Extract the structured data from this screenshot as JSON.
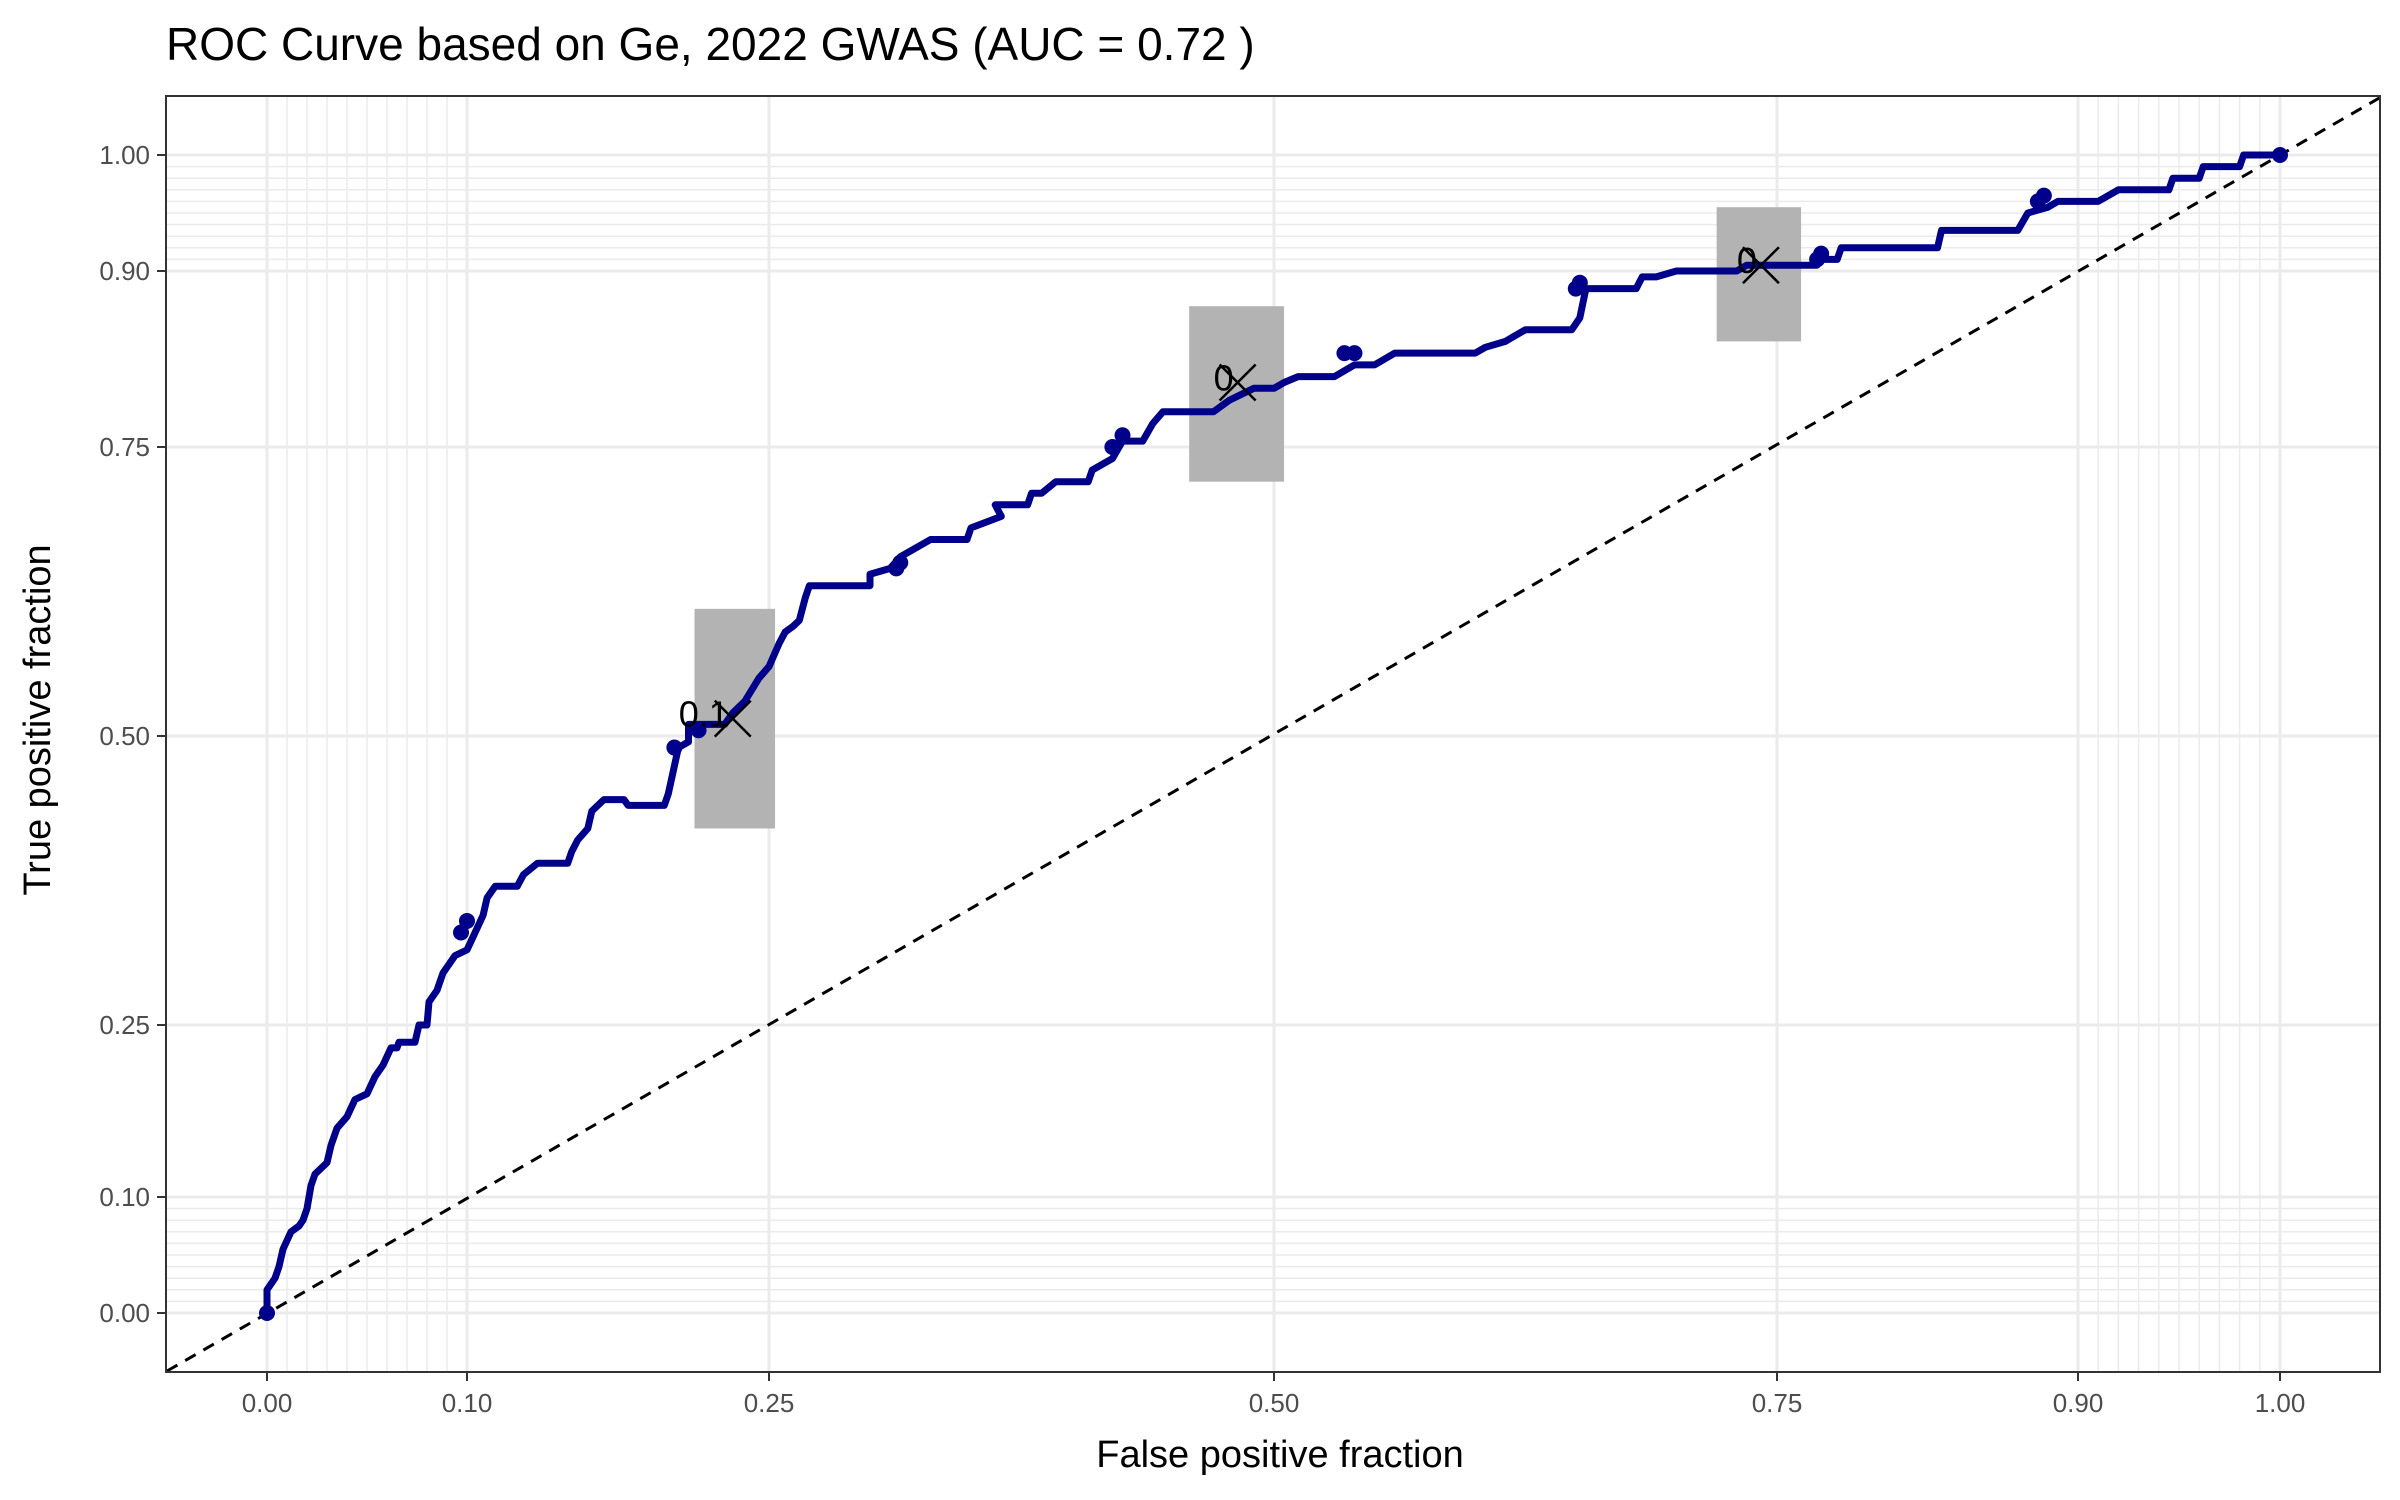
{
  "chart_data": {
    "type": "line",
    "title": "ROC Curve based on Ge, 2022 GWAS (AUC = 0.72 )",
    "xlabel": "False positive fraction",
    "ylabel": "True positive fraction",
    "xlim": [
      -0.05,
      1.05
    ],
    "ylim": [
      -0.05,
      1.05
    ],
    "x_ticks": [
      0.0,
      0.1,
      0.25,
      0.5,
      0.75,
      0.9,
      1.0
    ],
    "x_tick_labels": [
      "0.00",
      "0.10",
      "0.25",
      "0.50",
      "0.75",
      "0.90",
      "1.00"
    ],
    "y_ticks": [
      0.0,
      0.1,
      0.25,
      0.5,
      0.75,
      0.9,
      1.0
    ],
    "y_tick_labels": [
      "0.00",
      "0.10",
      "0.25",
      "0.50",
      "0.75",
      "0.90",
      "1.00"
    ],
    "minor_grid": [
      0.01,
      0.02,
      0.03,
      0.04,
      0.05,
      0.06,
      0.07,
      0.08,
      0.09,
      0.91,
      0.92,
      0.93,
      0.94,
      0.95,
      0.96,
      0.97,
      0.98,
      0.99
    ],
    "grid": true,
    "line_color": "#00008B",
    "reference_line": {
      "x": [
        0,
        1
      ],
      "y": [
        0,
        1
      ],
      "style": "dashed",
      "color": "#000000"
    },
    "series": [
      {
        "values_xy": [
          [
            0.0,
            0.0
          ],
          [
            0.0,
            0.02
          ],
          [
            0.004,
            0.03
          ],
          [
            0.006,
            0.04
          ],
          [
            0.008,
            0.055
          ],
          [
            0.012,
            0.07
          ],
          [
            0.016,
            0.075
          ],
          [
            0.018,
            0.08
          ],
          [
            0.02,
            0.09
          ],
          [
            0.022,
            0.11
          ],
          [
            0.024,
            0.12
          ],
          [
            0.03,
            0.13
          ],
          [
            0.032,
            0.145
          ],
          [
            0.035,
            0.16
          ],
          [
            0.04,
            0.17
          ],
          [
            0.044,
            0.185
          ],
          [
            0.05,
            0.19
          ],
          [
            0.054,
            0.205
          ],
          [
            0.058,
            0.215
          ],
          [
            0.062,
            0.23
          ],
          [
            0.065,
            0.23
          ],
          [
            0.066,
            0.235
          ],
          [
            0.074,
            0.235
          ],
          [
            0.076,
            0.25
          ],
          [
            0.08,
            0.25
          ],
          [
            0.081,
            0.27
          ],
          [
            0.085,
            0.28
          ],
          [
            0.088,
            0.295
          ],
          [
            0.09,
            0.3
          ],
          [
            0.094,
            0.31
          ],
          [
            0.1,
            0.315
          ],
          [
            0.104,
            0.33
          ],
          [
            0.108,
            0.345
          ],
          [
            0.11,
            0.36
          ],
          [
            0.114,
            0.37
          ],
          [
            0.125,
            0.37
          ],
          [
            0.128,
            0.38
          ],
          [
            0.135,
            0.39
          ],
          [
            0.15,
            0.39
          ],
          [
            0.152,
            0.4
          ],
          [
            0.155,
            0.41
          ],
          [
            0.16,
            0.42
          ],
          [
            0.162,
            0.435
          ],
          [
            0.168,
            0.445
          ],
          [
            0.178,
            0.445
          ],
          [
            0.18,
            0.44
          ],
          [
            0.198,
            0.44
          ],
          [
            0.2,
            0.45
          ],
          [
            0.205,
            0.49
          ],
          [
            0.21,
            0.495
          ],
          [
            0.21,
            0.51
          ],
          [
            0.228,
            0.51
          ],
          [
            0.232,
            0.52
          ],
          [
            0.238,
            0.53
          ],
          [
            0.245,
            0.55
          ],
          [
            0.25,
            0.56
          ],
          [
            0.255,
            0.58
          ],
          [
            0.258,
            0.59
          ],
          [
            0.262,
            0.595
          ],
          [
            0.265,
            0.6
          ],
          [
            0.268,
            0.62
          ],
          [
            0.27,
            0.63
          ],
          [
            0.3,
            0.63
          ],
          [
            0.3,
            0.64
          ],
          [
            0.31,
            0.645
          ],
          [
            0.315,
            0.655
          ],
          [
            0.33,
            0.67
          ],
          [
            0.348,
            0.67
          ],
          [
            0.35,
            0.68
          ],
          [
            0.365,
            0.69
          ],
          [
            0.362,
            0.7
          ],
          [
            0.378,
            0.7
          ],
          [
            0.38,
            0.71
          ],
          [
            0.385,
            0.71
          ],
          [
            0.392,
            0.72
          ],
          [
            0.408,
            0.72
          ],
          [
            0.41,
            0.73
          ],
          [
            0.42,
            0.74
          ],
          [
            0.425,
            0.755
          ],
          [
            0.435,
            0.755
          ],
          [
            0.44,
            0.77
          ],
          [
            0.445,
            0.78
          ],
          [
            0.47,
            0.78
          ],
          [
            0.478,
            0.79
          ],
          [
            0.49,
            0.8
          ],
          [
            0.5,
            0.8
          ],
          [
            0.505,
            0.805
          ],
          [
            0.512,
            0.81
          ],
          [
            0.53,
            0.81
          ],
          [
            0.54,
            0.82
          ],
          [
            0.55,
            0.82
          ],
          [
            0.56,
            0.83
          ],
          [
            0.6,
            0.83
          ],
          [
            0.605,
            0.835
          ],
          [
            0.615,
            0.84
          ],
          [
            0.62,
            0.845
          ],
          [
            0.625,
            0.85
          ],
          [
            0.648,
            0.85
          ],
          [
            0.652,
            0.86
          ],
          [
            0.655,
            0.885
          ],
          [
            0.68,
            0.885
          ],
          [
            0.683,
            0.895
          ],
          [
            0.69,
            0.895
          ],
          [
            0.7,
            0.9
          ],
          [
            0.73,
            0.9
          ],
          [
            0.735,
            0.905
          ],
          [
            0.77,
            0.905
          ],
          [
            0.772,
            0.91
          ],
          [
            0.78,
            0.91
          ],
          [
            0.782,
            0.92
          ],
          [
            0.83,
            0.92
          ],
          [
            0.832,
            0.935
          ],
          [
            0.87,
            0.935
          ],
          [
            0.875,
            0.95
          ],
          [
            0.885,
            0.955
          ],
          [
            0.89,
            0.96
          ],
          [
            0.91,
            0.96
          ],
          [
            0.92,
            0.97
          ],
          [
            0.945,
            0.97
          ],
          [
            0.947,
            0.98
          ],
          [
            0.96,
            0.98
          ],
          [
            0.962,
            0.99
          ],
          [
            0.98,
            0.99
          ],
          [
            0.982,
            1.0
          ],
          [
            1.0,
            1.0
          ]
        ]
      }
    ],
    "points": [
      [
        0.0,
        0.0
      ],
      [
        0.097,
        0.33
      ],
      [
        0.1,
        0.34
      ],
      [
        0.203,
        0.49
      ],
      [
        0.215,
        0.505
      ],
      [
        0.313,
        0.645
      ],
      [
        0.315,
        0.65
      ],
      [
        0.42,
        0.75
      ],
      [
        0.425,
        0.76
      ],
      [
        0.535,
        0.83
      ],
      [
        0.54,
        0.83
      ],
      [
        0.65,
        0.885
      ],
      [
        0.652,
        0.89
      ],
      [
        0.77,
        0.91
      ],
      [
        0.772,
        0.915
      ],
      [
        0.88,
        0.96
      ],
      [
        0.883,
        0.965
      ],
      [
        1.0,
        1.0
      ]
    ],
    "cutoffs": [
      {
        "label": "0.1",
        "x": 0.232,
        "y": 0.515,
        "x_range": [
          0.213,
          0.253
        ],
        "y_range": [
          0.42,
          0.61
        ]
      },
      {
        "label": "0",
        "x": 0.482,
        "y": 0.805,
        "x_range": [
          0.458,
          0.505
        ],
        "y_range": [
          0.72,
          0.87
        ]
      },
      {
        "label": "0",
        "x": 0.742,
        "y": 0.905,
        "x_range": [
          0.72,
          0.762
        ],
        "y_range": [
          0.84,
          0.955
        ]
      }
    ],
    "cutoff_box_color": "#b3b3b3"
  }
}
